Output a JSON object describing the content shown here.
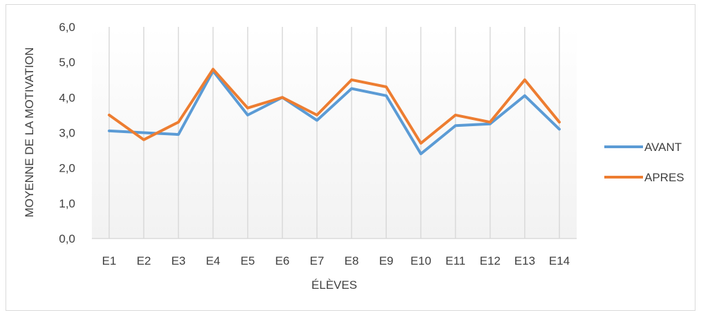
{
  "chart_data": {
    "type": "line",
    "title": "",
    "xlabel": "ÉLÈVES",
    "ylabel": "MOYENNE DE LA MOTIVATION",
    "categories": [
      "E1",
      "E2",
      "E3",
      "E4",
      "E5",
      "E6",
      "E7",
      "E8",
      "E9",
      "E10",
      "E11",
      "E12",
      "E13",
      "E14"
    ],
    "ylim": [
      0,
      6
    ],
    "yticks": [
      "0,0",
      "1,0",
      "2,0",
      "3,0",
      "4,0",
      "5,0",
      "6,0"
    ],
    "grid": "vertical",
    "legend_position": "right",
    "series": [
      {
        "name": "AVANT",
        "color": "#5b9bd5",
        "values": [
          3.05,
          3.0,
          2.95,
          4.75,
          3.5,
          4.0,
          3.35,
          4.25,
          4.05,
          2.4,
          3.2,
          3.25,
          4.05,
          3.1
        ]
      },
      {
        "name": "APRES",
        "color": "#ed7d31",
        "values": [
          3.5,
          2.8,
          3.3,
          4.8,
          3.7,
          4.0,
          3.5,
          4.5,
          4.3,
          2.7,
          3.5,
          3.3,
          4.5,
          3.3
        ]
      }
    ]
  }
}
